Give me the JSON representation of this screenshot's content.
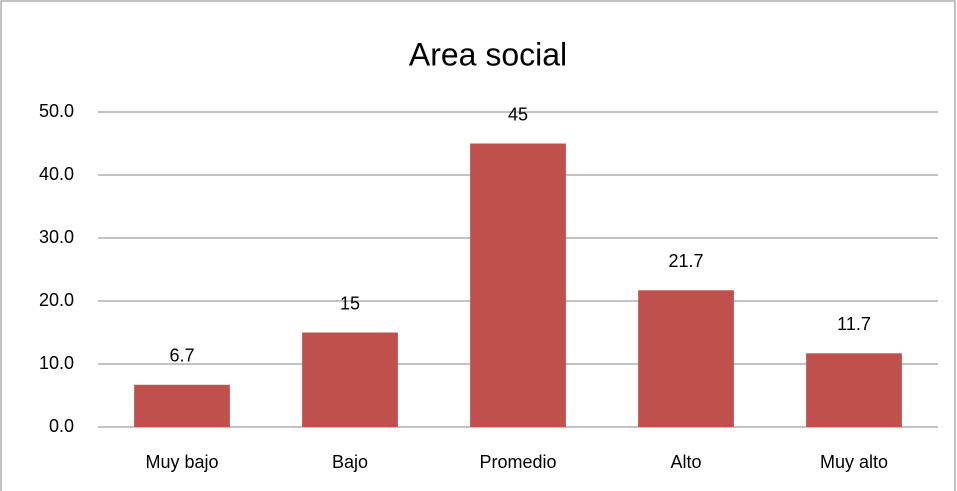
{
  "chart_data": {
    "type": "bar",
    "title": "Area social",
    "categories": [
      "Muy bajo",
      "Bajo",
      "Promedio",
      "Alto",
      "Muy alto"
    ],
    "values": [
      6.7,
      15,
      45,
      21.7,
      11.7
    ],
    "color": "#c0504d",
    "ylim": [
      0,
      50
    ],
    "yticks": [
      {
        "value": 0,
        "label": "0.0"
      },
      {
        "value": 10,
        "label": "10.0"
      },
      {
        "value": 20,
        "label": "20.0"
      },
      {
        "value": 30,
        "label": "30.0"
      },
      {
        "value": 40,
        "label": "40.0"
      },
      {
        "value": 50,
        "label": "50.0"
      }
    ],
    "grid": true
  }
}
